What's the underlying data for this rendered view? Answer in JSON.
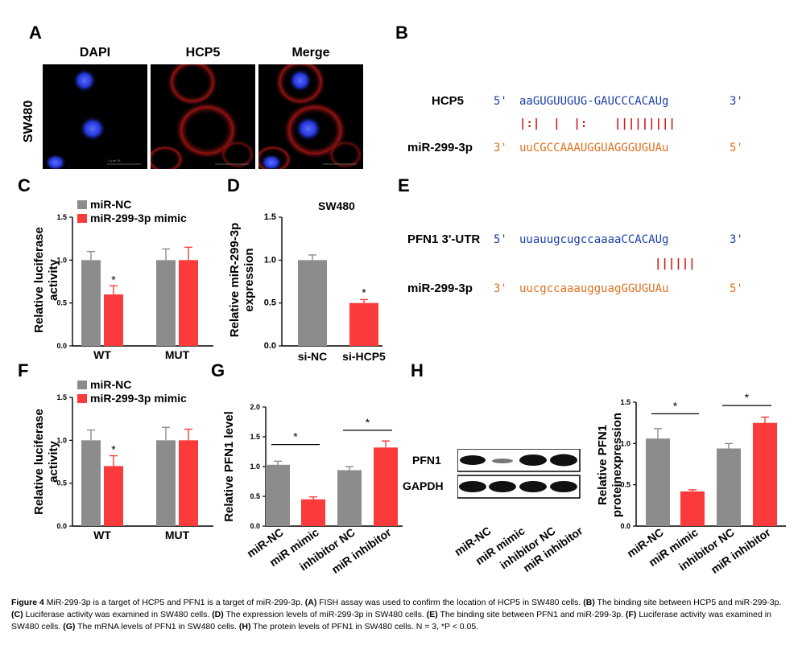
{
  "panels": {
    "A": "A",
    "B": "B",
    "C": "C",
    "D": "D",
    "E": "E",
    "F": "F",
    "G": "G",
    "H": "H"
  },
  "panel_a": {
    "row_label": "SW480",
    "columns": [
      "DAPI",
      "HCP5",
      "Merge"
    ],
    "scale_text": "0     µm    25"
  },
  "panel_b": {
    "top_name": "HCP5",
    "top_prefix": "5'",
    "top_seq": "aaGUGUUGUG-GAUCCCACAUg",
    "top_suffix": "3'",
    "pairs": "|:|  |  |:    |||||||||",
    "bottom_name": "miR-299-3p",
    "bottom_prefix": "3'",
    "bottom_seq": "uuCGCCAAAUGGUAGGGUGUAu",
    "bottom_suffix": "5'"
  },
  "panel_e": {
    "top_name": "PFN1 3'-UTR",
    "top_prefix": "5'",
    "top_seq": "uuauugcugccaaaaCCACAUg",
    "top_suffix": "3'",
    "pairs": "||||||",
    "bottom_name": "miR-299-3p",
    "bottom_prefix": "3'",
    "bottom_seq": "uucgccaaaugguagGGUGUAu",
    "bottom_suffix": "5'"
  },
  "panel_h_blot": {
    "bands": [
      "PFN1",
      "GAPDH"
    ],
    "lanes": [
      "miR-NC",
      "miR mimic",
      "inhibitor NC",
      "miR inhibitor"
    ]
  },
  "colors": {
    "gray": "#8c8c8c",
    "red": "#fb3b3b",
    "blue_seq": "#1b3fa8",
    "orange_seq": "#e0701e",
    "pair_red": "#d11919"
  },
  "chart_data": [
    {
      "id": "C",
      "type": "bar",
      "categories": [
        "WT",
        "MUT"
      ],
      "series": [
        {
          "name": "miR-NC",
          "values": [
            1.0,
            1.0
          ],
          "err": [
            0.1,
            0.13
          ]
        },
        {
          "name": "miR-299-3p mimic",
          "values": [
            0.6,
            1.0
          ],
          "err": [
            0.1,
            0.15
          ]
        }
      ],
      "ylabel": "Relative luciferase activity",
      "ylim": [
        0,
        1.5
      ],
      "yticks": [
        "0.0",
        "0.5",
        "1.0",
        "1.5"
      ],
      "sig": [
        {
          "label": "*"
        }
      ]
    },
    {
      "id": "D",
      "type": "bar",
      "title": "SW480",
      "categories": [
        "si-NC",
        "si-HCP5"
      ],
      "values": [
        1.0,
        0.5
      ],
      "err": [
        0.06,
        0.04
      ],
      "ylabel": "Relative miR-299-3p expression",
      "ylim": [
        0,
        1.5
      ],
      "yticks": [
        "0.0",
        "0.5",
        "1.0",
        "1.5"
      ],
      "sig": [
        {
          "label": "*"
        }
      ]
    },
    {
      "id": "F",
      "type": "bar",
      "categories": [
        "WT",
        "MUT"
      ],
      "series": [
        {
          "name": "miR-NC",
          "values": [
            1.0,
            1.0
          ],
          "err": [
            0.12,
            0.15
          ]
        },
        {
          "name": "miR-299-3p mimic",
          "values": [
            0.7,
            1.0
          ],
          "err": [
            0.12,
            0.13
          ]
        }
      ],
      "ylabel": "Relative luciferase activity",
      "ylim": [
        0,
        1.5
      ],
      "yticks": [
        "0.0",
        "0.5",
        "1.0",
        "1.5"
      ],
      "sig": [
        {
          "label": "*"
        }
      ]
    },
    {
      "id": "G",
      "type": "bar",
      "categories": [
        "miR-NC",
        "miR mimic",
        "inhibitor NC",
        "miR inhibitor"
      ],
      "values": [
        1.03,
        0.45,
        0.94,
        1.32
      ],
      "err": [
        0.06,
        0.04,
        0.06,
        0.11
      ],
      "ylabel": "Relative PFN1 level",
      "ylim": [
        0,
        2.0
      ],
      "yticks": [
        "0.0",
        "0.5",
        "1.0",
        "1.5",
        "2.0"
      ],
      "sig": [
        {
          "label": "*"
        },
        {
          "label": "*"
        }
      ]
    },
    {
      "id": "H",
      "type": "bar",
      "categories": [
        "miR-NC",
        "miR mimic",
        "inhibitor NC",
        "miR inhibitor"
      ],
      "values": [
        1.06,
        0.42,
        0.94,
        1.25
      ],
      "err": [
        0.12,
        0.02,
        0.06,
        0.07
      ],
      "ylabel": "Relative PFN1 proteinexpression",
      "ylim": [
        0,
        1.5
      ],
      "yticks": [
        "0.0",
        "0.5",
        "1.0",
        "1.5"
      ],
      "sig": [
        {
          "label": "*"
        },
        {
          "label": "*"
        }
      ]
    }
  ],
  "caption": {
    "fig": "Figure 4",
    "main": "MiR-299-3p is a target of HCP5 and PFN1 is a target of miR-299-3p.",
    "a_tag": "(A)",
    "a_text": "FISH assay was used to confirm the location of HCP5 in SW480 cells.",
    "b_tag": "(B)",
    "b_text": "The binding site between HCP5 and miR-299-3p.",
    "c_tag": "(C)",
    "c_text": "Luciferase activity was examined in SW480 cells.",
    "d_tag": "(D)",
    "d_text": "The expression levels of miR-299-3p in SW480 cells.",
    "e_tag": "(E)",
    "e_text": "The binding site between PFN1 and miR-299-3p.",
    "f_tag": "(F)",
    "f_text": "Luciferase activity was examined in SW480 cells.",
    "g_tag": "(G)",
    "g_text": "The mRNA levels of PFN1 in SW480 cells.",
    "h_tag": "(H)",
    "h_text": "The protein levels of PFN1 in SW480 cells.",
    "stats": "N = 3, *P < 0.05."
  }
}
